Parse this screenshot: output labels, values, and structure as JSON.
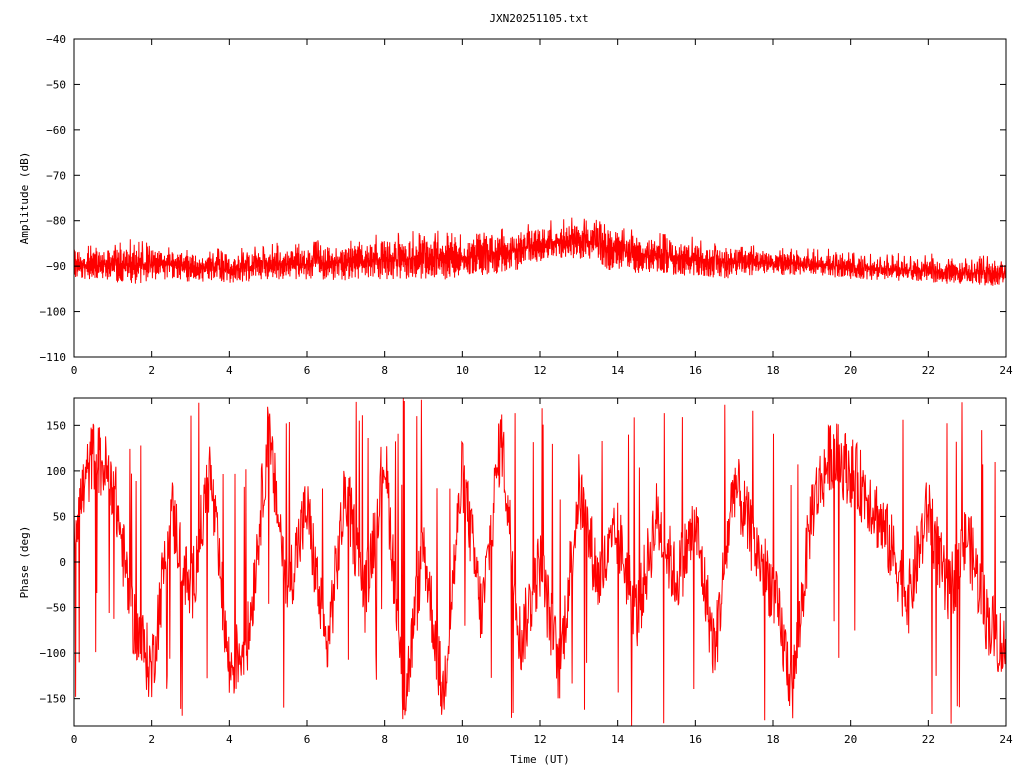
{
  "title": "JXN20251105.txt",
  "chart_data": [
    {
      "type": "line",
      "title": "JXN20251105.txt",
      "xlabel": "",
      "ylabel": "Amplitude (dB)",
      "xlim": [
        0,
        24
      ],
      "ylim": [
        -110,
        -40
      ],
      "xticks": [
        0,
        2,
        4,
        6,
        8,
        10,
        12,
        14,
        16,
        18,
        20,
        22,
        24
      ],
      "yticks": [
        -40,
        -50,
        -60,
        -70,
        -80,
        -90,
        -100,
        -110
      ],
      "grid": false,
      "color": "#ff0000",
      "series": [
        {
          "x": [
            0,
            0.5,
            1,
            1.5,
            2,
            2.5,
            3,
            3.5,
            4,
            4.5,
            5,
            5.5,
            6,
            6.5,
            7,
            7.5,
            8,
            8.5,
            9,
            9.5,
            10,
            10.5,
            11,
            11.4,
            11.6,
            12,
            12.5,
            13,
            13.5,
            13.7,
            14,
            14.5,
            15,
            15.5,
            16,
            16.5,
            16.8,
            17,
            17.5,
            18,
            18.5,
            19,
            19.5,
            20,
            20.5,
            21,
            21.5,
            22,
            22.5,
            23,
            23.5,
            24
          ],
          "low": [
            -93,
            -93,
            -93.5,
            -94,
            -93.5,
            -93,
            -93.5,
            -93.5,
            -94,
            -93.5,
            -93,
            -93,
            -93,
            -93,
            -93.5,
            -93,
            -93,
            -93,
            -93,
            -93,
            -92.5,
            -92,
            -91.5,
            -91,
            -89.5,
            -89,
            -88.5,
            -88.5,
            -88.5,
            -91,
            -91,
            -91.5,
            -91.5,
            -92,
            -92.5,
            -92.5,
            -93,
            -92,
            -92,
            -92,
            -92,
            -92,
            -92.5,
            -93,
            -93,
            -93,
            -93.5,
            -93.5,
            -94,
            -94,
            -94.5,
            -94
          ],
          "high": [
            -86,
            -86.5,
            -86,
            -85.5,
            -86,
            -86.5,
            -87,
            -87.5,
            -87.5,
            -87,
            -86.5,
            -86,
            -86,
            -85.5,
            -85,
            -84.5,
            -84,
            -84,
            -83.5,
            -83.5,
            -84,
            -83.5,
            -83,
            -82,
            -82,
            -81.5,
            -81,
            -80.5,
            -81,
            -81.5,
            -82,
            -83,
            -84,
            -84.5,
            -85,
            -86,
            -85.5,
            -86,
            -86.5,
            -87,
            -87,
            -87.5,
            -87.5,
            -88,
            -88,
            -88.5,
            -88.5,
            -88.5,
            -89,
            -89,
            -89,
            -89.5
          ]
        }
      ]
    },
    {
      "type": "line",
      "title": "",
      "xlabel": "Time (UT)",
      "ylabel": "Phase (deg)",
      "xlim": [
        0,
        24
      ],
      "ylim": [
        -180,
        180
      ],
      "xticks": [
        0,
        2,
        4,
        6,
        8,
        10,
        12,
        14,
        16,
        18,
        20,
        22,
        24
      ],
      "yticks": [
        150,
        100,
        50,
        0,
        -50,
        -100,
        -150
      ],
      "grid": false,
      "color": "#ff0000",
      "series": [
        {
          "x": [
            0,
            0.5,
            1,
            1.5,
            2,
            2.5,
            3,
            3.5,
            4,
            4.5,
            5,
            5.5,
            6,
            6.5,
            7,
            7.5,
            8,
            8.5,
            9,
            9.5,
            10,
            10.5,
            11,
            11.5,
            12,
            12.5,
            13,
            13.5,
            14,
            14.5,
            15,
            15.5,
            16,
            16.5,
            17,
            17.5,
            18,
            18.5,
            19,
            19.5,
            20,
            20.5,
            21,
            21.5,
            22,
            22.5,
            23,
            23.5,
            24
          ],
          "y": [
            40,
            120,
            90,
            -60,
            -120,
            60,
            -40,
            100,
            -120,
            -80,
            140,
            -30,
            60,
            -100,
            80,
            -40,
            120,
            -160,
            20,
            -150,
            100,
            -60,
            140,
            -90,
            0,
            -120,
            80,
            -20,
            30,
            -60,
            50,
            -20,
            40,
            -100,
            90,
            20,
            -30,
            -140,
            60,
            120,
            100,
            70,
            20,
            -40,
            60,
            -40,
            30,
            -60,
            -100
          ]
        }
      ]
    }
  ]
}
